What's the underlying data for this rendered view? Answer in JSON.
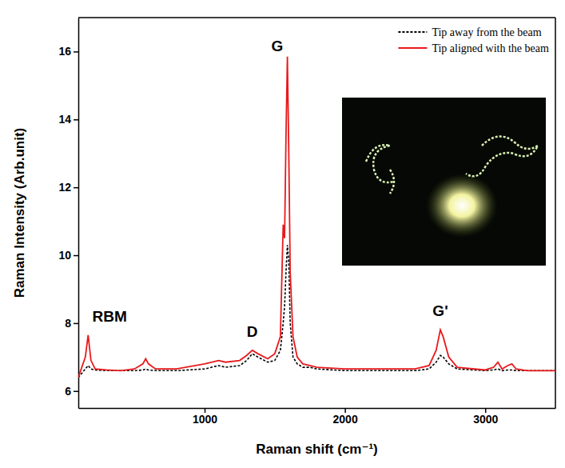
{
  "chart_data": {
    "type": "line",
    "x_label": "Raman shift (cm⁻¹)",
    "y_label": "Raman Intensity (Arb.unit)",
    "xlim": [
      100,
      3500
    ],
    "xticks": [
      1000,
      2000,
      3000
    ],
    "ylim": [
      5.5,
      17
    ],
    "yticks": [
      6,
      8,
      10,
      12,
      14,
      16
    ],
    "legend": "upper right",
    "x": [
      100,
      150,
      170,
      190,
      220,
      300,
      400,
      500,
      560,
      580,
      600,
      650,
      800,
      1000,
      1100,
      1150,
      1250,
      1300,
      1340,
      1380,
      1450,
      1500,
      1540,
      1560,
      1570,
      1580,
      1590,
      1600,
      1610,
      1630,
      1660,
      1700,
      1750,
      1800,
      2000,
      2300,
      2500,
      2600,
      2650,
      2680,
      2700,
      2740,
      2800,
      3000,
      3060,
      3090,
      3120,
      3160,
      3190,
      3220,
      3300,
      3500
    ],
    "series": [
      {
        "name": "Tip away from the beam",
        "color": "#000000",
        "line_style": "dashed",
        "values": [
          6.4,
          6.65,
          6.75,
          6.65,
          6.62,
          6.6,
          6.6,
          6.6,
          6.62,
          6.65,
          6.62,
          6.6,
          6.6,
          6.65,
          6.75,
          6.7,
          6.75,
          6.9,
          7.1,
          7.0,
          6.85,
          6.9,
          7.2,
          8.0,
          8.5,
          9.5,
          10.3,
          9.8,
          8.0,
          7.0,
          6.8,
          6.7,
          6.7,
          6.65,
          6.6,
          6.6,
          6.6,
          6.65,
          6.85,
          7.05,
          7.0,
          6.8,
          6.65,
          6.6,
          6.62,
          6.65,
          6.6,
          6.62,
          6.62,
          6.6,
          6.6,
          6.6
        ]
      },
      {
        "name": "Tip aligned with the beam",
        "color": "#e8191c",
        "line_style": "solid",
        "values": [
          6.4,
          7.0,
          7.65,
          6.9,
          6.65,
          6.62,
          6.6,
          6.65,
          6.8,
          6.95,
          6.8,
          6.65,
          6.65,
          6.8,
          6.9,
          6.85,
          6.9,
          7.05,
          7.2,
          7.1,
          6.95,
          7.1,
          7.6,
          10.9,
          10.5,
          13.5,
          15.85,
          13.0,
          9.5,
          7.6,
          7.0,
          6.8,
          6.75,
          6.7,
          6.65,
          6.65,
          6.65,
          6.75,
          7.2,
          7.8,
          7.6,
          7.0,
          6.7,
          6.62,
          6.7,
          6.85,
          6.65,
          6.75,
          6.8,
          6.65,
          6.6,
          6.6
        ]
      }
    ],
    "annotations": [
      {
        "text": "RBM",
        "x": 200,
        "y": 8.05
      },
      {
        "text": "D",
        "x": 1340,
        "y": 7.6
      },
      {
        "text": "G",
        "x": 1560,
        "y": 16.0
      },
      {
        "text": "G'",
        "x": 2680,
        "y": 8.2
      }
    ]
  }
}
